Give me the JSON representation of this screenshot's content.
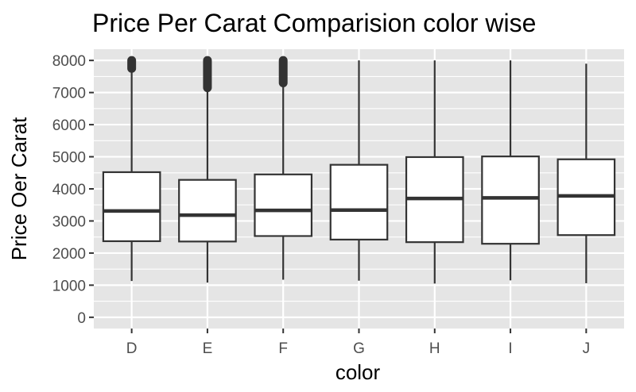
{
  "chart_data": {
    "type": "boxplot",
    "title": "Price Per Carat Comparision color wise",
    "xlabel": "color",
    "ylabel": "Price Oer Carat",
    "categories": [
      "D",
      "E",
      "F",
      "G",
      "H",
      "I",
      "J"
    ],
    "yticks": [
      0,
      1000,
      2000,
      3000,
      4000,
      5000,
      6000,
      7000,
      8000
    ],
    "ylim": [
      -350,
      8350
    ],
    "grid": true,
    "legend": "none",
    "boxes": [
      {
        "category": "D",
        "min": 1130,
        "q1": 2370,
        "median": 3310,
        "q3": 4520,
        "whisker_max": 7800,
        "outlier_range": [
          7750,
          8000
        ]
      },
      {
        "category": "E",
        "min": 1080,
        "q1": 2360,
        "median": 3180,
        "q3": 4280,
        "whisker_max": 7100,
        "outlier_range": [
          7150,
          8000
        ]
      },
      {
        "category": "F",
        "min": 1170,
        "q1": 2530,
        "median": 3330,
        "q3": 4450,
        "whisker_max": 7250,
        "outlier_range": [
          7300,
          8000
        ]
      },
      {
        "category": "G",
        "min": 1140,
        "q1": 2420,
        "median": 3340,
        "q3": 4750,
        "whisker_max": 8000,
        "outlier_range": null
      },
      {
        "category": "H",
        "min": 1050,
        "q1": 2340,
        "median": 3700,
        "q3": 4990,
        "whisker_max": 8000,
        "outlier_range": null
      },
      {
        "category": "I",
        "min": 1150,
        "q1": 2290,
        "median": 3720,
        "q3": 5010,
        "whisker_max": 8000,
        "outlier_range": null
      },
      {
        "category": "J",
        "min": 1060,
        "q1": 2560,
        "median": 3780,
        "q3": 4920,
        "whisker_max": 7900,
        "outlier_range": null
      }
    ],
    "colors": {
      "panel_background": "#e5e5e5",
      "grid": "#ffffff",
      "box_fill": "#ffffff",
      "box_stroke": "#333333",
      "text": "#000000",
      "tick_text": "#4d4d4d"
    }
  }
}
